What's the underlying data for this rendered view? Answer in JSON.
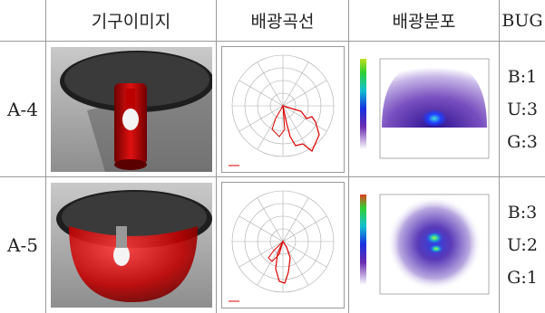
{
  "table": {
    "header": [
      "기구이미지",
      "배광곡선",
      "배광분포",
      "BUG"
    ],
    "rows": [
      {
        "id": "A-4",
        "bug": [
          "B:1",
          "U:3",
          "G:3"
        ]
      },
      {
        "id": "A-5",
        "bug": [
          "B:3",
          "U:2",
          "G:1"
        ]
      }
    ]
  }
}
